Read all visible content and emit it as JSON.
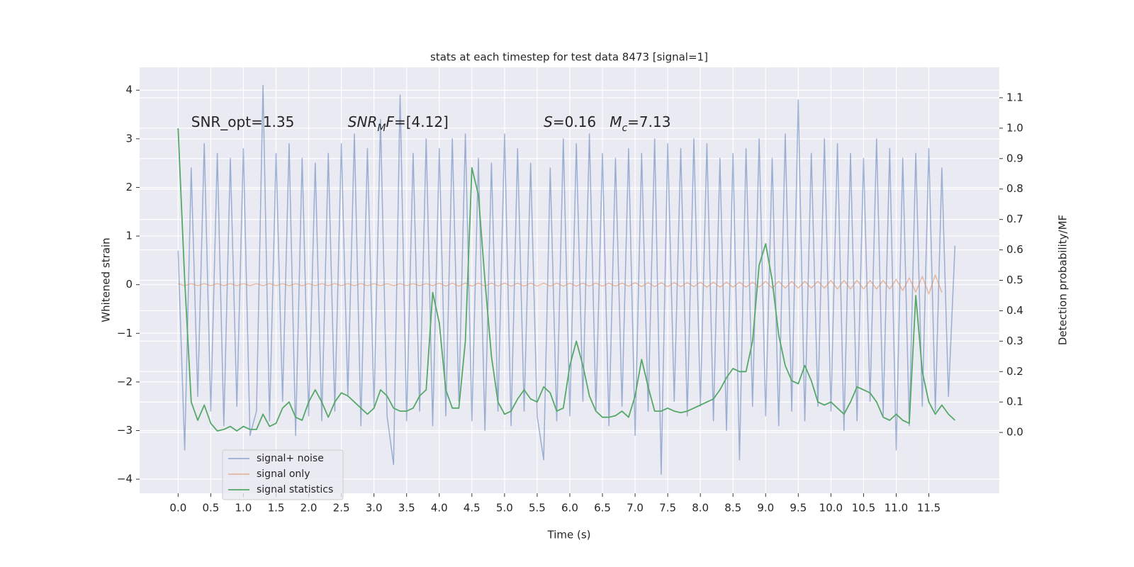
{
  "chart_data": {
    "type": "line",
    "title": "stats at each timestep for test data 8473 [signal=1]",
    "xlabel": "Time (s)",
    "ylabel": "Whitened strain",
    "y2label": "Detection probability/MF",
    "xlim": [
      -0.59,
      12.58
    ],
    "ylim": [
      -4.29,
      4.47
    ],
    "y2lim": [
      -0.2,
      1.2
    ],
    "xticks": [
      {
        "value": 0,
        "label": "0.0"
      },
      0.5,
      {
        "value": 1,
        "label": "1.0"
      },
      1.5,
      {
        "value": 2,
        "label": "2.0"
      },
      2.5,
      {
        "value": 3,
        "label": "3.0"
      },
      3.5,
      {
        "value": 4,
        "label": "4.0"
      },
      4.5,
      {
        "value": 5,
        "label": "5.0"
      },
      5.5,
      {
        "value": 6,
        "label": "6.0"
      },
      6.5,
      {
        "value": 7,
        "label": "7.0"
      },
      7.5,
      {
        "value": 8,
        "label": "8.0"
      },
      8.5,
      {
        "value": 9,
        "label": "9.0"
      },
      9.5,
      {
        "value": 10,
        "label": "10.0"
      },
      10.5,
      {
        "value": 11,
        "label": "11.0"
      },
      11.5
    ],
    "yticks": [
      {
        "value": -4,
        "label": "−4"
      },
      {
        "value": -3,
        "label": "−3"
      },
      {
        "value": -2,
        "label": "−2"
      },
      {
        "value": -1,
        "label": "−1"
      },
      0,
      1,
      2,
      3,
      4
    ],
    "y2ticks": [
      {
        "value": 0,
        "label": "0.0"
      },
      0.1,
      0.2,
      0.3,
      0.4,
      0.5,
      0.6,
      0.7,
      0.8,
      0.9,
      {
        "value": 1,
        "label": "1.0"
      },
      1.1
    ],
    "grid": true,
    "legend": "lower left",
    "x": [
      0,
      0.1,
      0.2,
      0.3,
      0.4,
      0.5,
      0.6,
      0.7,
      0.8,
      0.9,
      1,
      1.1,
      1.2,
      1.3,
      1.4,
      1.5,
      1.6,
      1.7,
      1.8,
      1.9,
      2,
      2.1,
      2.2,
      2.3,
      2.4,
      2.5,
      2.6,
      2.7,
      2.8,
      2.9,
      3,
      3.1,
      3.2,
      3.3,
      3.4,
      3.5,
      3.6,
      3.7,
      3.8,
      3.9,
      4,
      4.1,
      4.2,
      4.3,
      4.4,
      4.5,
      4.6,
      4.7,
      4.8,
      4.9,
      5,
      5.1,
      5.2,
      5.3,
      5.4,
      5.5,
      5.6,
      5.7,
      5.8,
      5.9,
      6,
      6.1,
      6.2,
      6.3,
      6.4,
      6.5,
      6.6,
      6.7,
      6.8,
      6.9,
      7,
      7.1,
      7.2,
      7.3,
      7.4,
      7.5,
      7.6,
      7.7,
      7.8,
      7.9,
      8,
      8.1,
      8.2,
      8.3,
      8.4,
      8.5,
      8.6,
      8.7,
      8.8,
      8.9,
      9,
      9.1,
      9.2,
      9.3,
      9.4,
      9.5,
      9.6,
      9.7,
      9.8,
      9.9,
      10,
      10.1,
      10.2,
      10.3,
      10.4,
      10.5,
      10.6,
      10.7,
      10.8,
      10.9,
      11,
      11.1,
      11.2,
      11.3,
      11.4,
      11.5,
      11.6,
      11.7,
      11.8,
      11.9
    ],
    "series": [
      {
        "name": "signal+ noise",
        "color": "#4c72b0",
        "values": [
          0.7,
          -3.4,
          2.4,
          -2.3,
          2.9,
          -2.6,
          2.7,
          -2.9,
          2.6,
          -2.5,
          2.8,
          -3.1,
          -2.6,
          4.1,
          -2.8,
          2.7,
          -2.4,
          2.9,
          -3.1,
          2.6,
          -2.7,
          2.5,
          -2.8,
          2.7,
          -2.6,
          2.9,
          -2.3,
          3.1,
          -2.9,
          2.8,
          -2.5,
          3.4,
          -2.7,
          -3.7,
          3.9,
          -2.8,
          2.7,
          -2.6,
          3.0,
          -2.9,
          2.8,
          -2.7,
          3.0,
          -2.4,
          3.1,
          -2.8,
          2.6,
          -3.0,
          2.5,
          -2.6,
          3.1,
          -2.9,
          2.8,
          -2.6,
          2.5,
          -2.7,
          -3.6,
          2.4,
          -2.8,
          3.0,
          -2.7,
          2.9,
          -2.4,
          3.1,
          -2.6,
          2.7,
          -2.9,
          2.6,
          -2.5,
          2.8,
          -3.1,
          2.7,
          -2.6,
          3.0,
          -3.9,
          2.9,
          -2.4,
          2.8,
          -2.7,
          3.0,
          -2.5,
          2.9,
          -2.8,
          2.6,
          -3.0,
          2.7,
          -3.6,
          2.8,
          -2.5,
          3.0,
          -2.7,
          2.6,
          -2.9,
          3.1,
          -2.6,
          3.8,
          -2.8,
          2.7,
          -2.5,
          3.0,
          -2.6,
          2.9,
          -3.0,
          2.7,
          -2.8,
          2.6,
          -2.4,
          3.0,
          -2.7,
          2.8,
          -3.4,
          2.6,
          -2.9,
          2.7,
          -2.5,
          2.8,
          -2.6,
          2.4,
          -2.3,
          0.8
        ]
      },
      {
        "name": "signal only",
        "color": "#dd8452",
        "values": [
          0.02,
          -0.02,
          0.02,
          -0.02,
          0.02,
          -0.02,
          0.02,
          -0.02,
          0.02,
          -0.02,
          0.02,
          -0.02,
          0.02,
          -0.02,
          0.02,
          -0.02,
          0.02,
          -0.02,
          0.02,
          -0.02,
          0.02,
          -0.02,
          0.02,
          -0.02,
          0.02,
          -0.02,
          0.02,
          -0.02,
          0.02,
          -0.02,
          0.02,
          -0.02,
          0.02,
          -0.02,
          0.02,
          -0.02,
          0.02,
          -0.02,
          0.02,
          -0.02,
          0.03,
          -0.03,
          0.03,
          -0.03,
          0.03,
          -0.03,
          0.03,
          -0.03,
          0.03,
          -0.03,
          0.03,
          -0.03,
          0.03,
          -0.03,
          0.03,
          -0.03,
          0.03,
          -0.03,
          0.03,
          -0.03,
          0.03,
          -0.03,
          0.03,
          -0.03,
          0.03,
          -0.03,
          0.03,
          -0.03,
          0.03,
          -0.03,
          0.04,
          -0.04,
          0.04,
          -0.04,
          0.04,
          -0.04,
          0.04,
          -0.04,
          0.04,
          -0.04,
          0.05,
          -0.05,
          0.05,
          -0.05,
          0.05,
          -0.05,
          0.05,
          -0.05,
          0.05,
          -0.05,
          0.07,
          -0.07,
          0.07,
          -0.07,
          0.07,
          -0.07,
          0.07,
          -0.07,
          0.07,
          -0.07,
          0.09,
          -0.09,
          0.09,
          -0.09,
          0.09,
          -0.09,
          0.09,
          -0.09,
          0.09,
          -0.09,
          0.11,
          -0.12,
          0.14,
          -0.15,
          0.17,
          -0.19,
          0.2,
          -0.16,
          null,
          null
        ]
      },
      {
        "name": "signal statistics",
        "color": "#55a868",
        "axis": "y2",
        "values": [
          1.0,
          0.5,
          0.1,
          0.04,
          0.09,
          0.03,
          0.005,
          0.01,
          0.02,
          0.005,
          0.02,
          0.01,
          0.01,
          0.06,
          0.02,
          0.03,
          0.08,
          0.1,
          0.05,
          0.04,
          0.1,
          0.14,
          0.1,
          0.05,
          0.1,
          0.13,
          0.12,
          0.1,
          0.08,
          0.06,
          0.08,
          0.14,
          0.12,
          0.08,
          0.07,
          0.07,
          0.08,
          0.12,
          0.14,
          0.46,
          0.36,
          0.14,
          0.08,
          0.08,
          0.3,
          0.87,
          0.78,
          0.5,
          0.25,
          0.1,
          0.06,
          0.07,
          0.11,
          0.14,
          0.11,
          0.1,
          0.15,
          0.13,
          0.07,
          0.08,
          0.22,
          0.3,
          0.22,
          0.12,
          0.07,
          0.05,
          0.05,
          0.055,
          0.07,
          0.05,
          0.12,
          0.24,
          0.15,
          0.07,
          0.07,
          0.08,
          0.07,
          0.065,
          0.07,
          0.08,
          0.09,
          0.1,
          0.11,
          0.14,
          0.18,
          0.21,
          0.2,
          0.2,
          0.3,
          0.55,
          0.62,
          0.5,
          0.32,
          0.22,
          0.17,
          0.16,
          0.22,
          0.17,
          0.1,
          0.09,
          0.1,
          0.08,
          0.06,
          0.1,
          0.15,
          0.14,
          0.13,
          0.1,
          0.05,
          0.04,
          0.06,
          0.04,
          0.03,
          0.45,
          0.2,
          0.1,
          0.06,
          0.09,
          0.06,
          0.04
        ]
      }
    ],
    "annotations": [
      {
        "x": 0.2,
        "y": 3.33,
        "parts": [
          {
            "text": "SNR_opt=1.35"
          }
        ]
      },
      {
        "x": 2.6,
        "y": 3.33,
        "parts": [
          {
            "text": "SNR",
            "italic": true
          },
          {
            "text": "M",
            "italic": true,
            "sub": true
          },
          {
            "text": "F",
            "italic": true
          },
          {
            "text": "=[4.12]"
          }
        ]
      },
      {
        "x": 5.6,
        "y": 3.33,
        "parts": [
          {
            "text": "S",
            "italic": true
          },
          {
            "text": "=0.16   "
          },
          {
            "text": "M",
            "italic": true
          },
          {
            "text": "c",
            "italic": true,
            "sub": true
          },
          {
            "text": "=7.13"
          }
        ]
      }
    ]
  }
}
